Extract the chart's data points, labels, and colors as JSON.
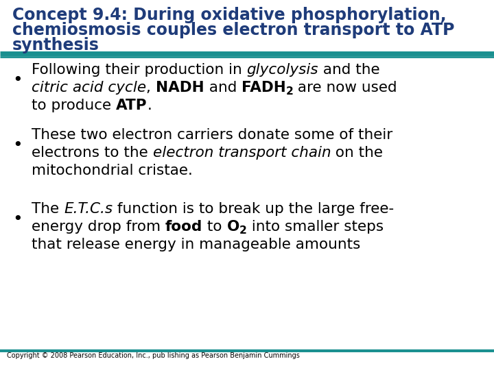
{
  "title_line1": "Concept 9.4: During oxidative phosphorylation,",
  "title_line2": "chemiosmosis couples electron transport to ATP",
  "title_line3": "synthesis",
  "title_color": "#1F3C7A",
  "background_color": "#FFFFFF",
  "separator_color": "#1A9090",
  "copyright": "Copyright © 2008 Pearson Education, Inc., pub lishing as Pearson Benjamin Cummings",
  "title_fontsize": 17,
  "body_fontsize": 15.5,
  "bullet_fontsize": 16
}
